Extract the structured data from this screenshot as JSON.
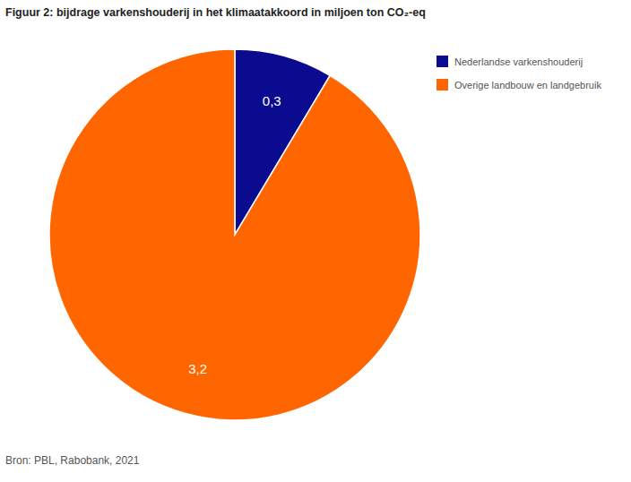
{
  "chart_data": {
    "type": "pie",
    "title": "Figuur 2: bijdrage varkenshouderij in het klimaatakkoord in miljoen ton CO₂-eq",
    "categories": [
      "Nederlandse varkenshouderij",
      "Overige landbouw en landgebruik"
    ],
    "values": [
      0.3,
      3.2
    ],
    "value_labels": [
      "0,3",
      "3,2"
    ],
    "colors": [
      "#0b0b8f",
      "#ff6600"
    ],
    "data_labels": true,
    "legend": "top-right",
    "source": "Bron: PBL, Rabobank, 2021"
  }
}
